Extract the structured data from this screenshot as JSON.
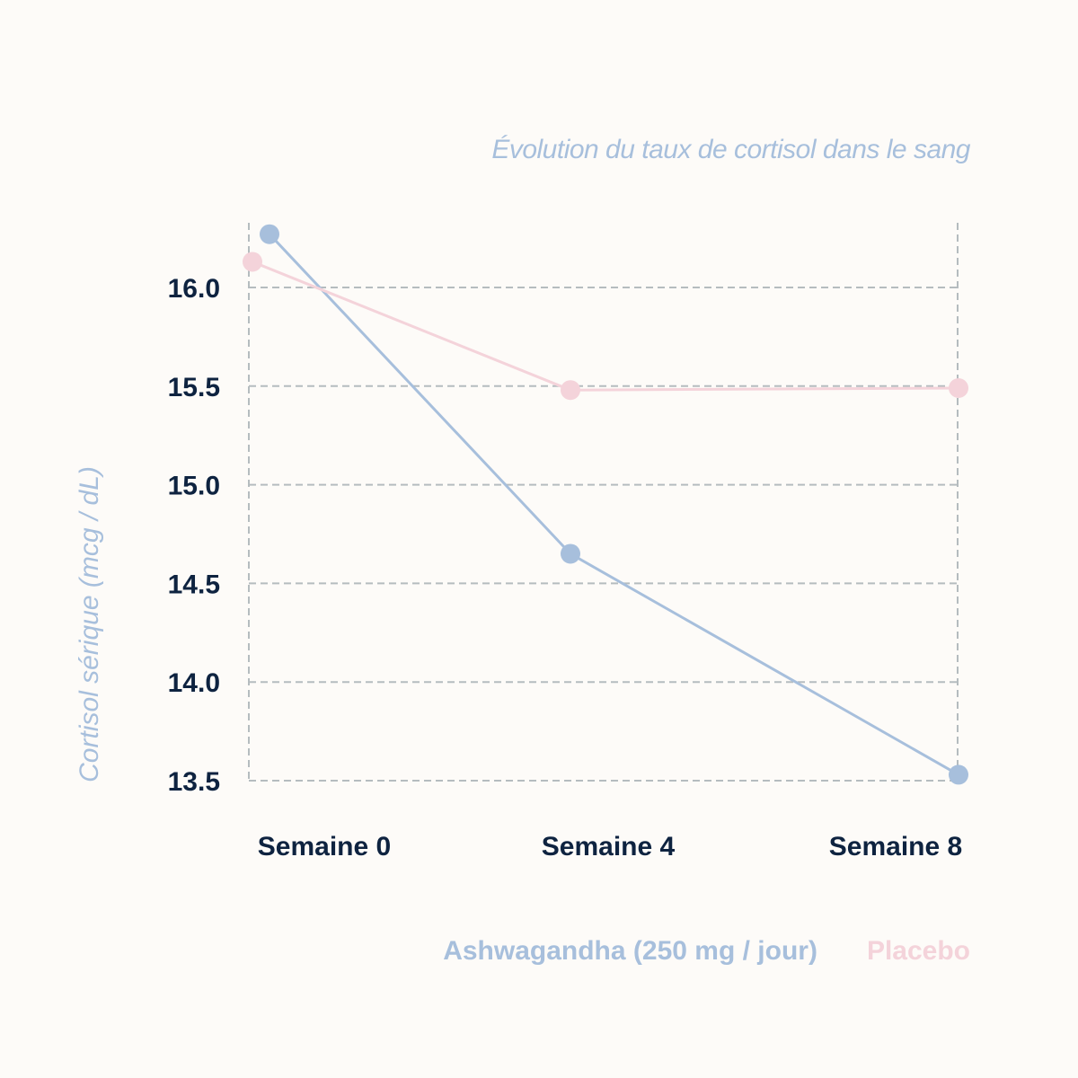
{
  "chart_data": {
    "type": "line",
    "title": "Évolution du taux de cortisol dans le sang",
    "xlabel": "",
    "ylabel": "Cortisol sérique (mcg / dL)",
    "categories": [
      "Semaine 0",
      "Semaine 4",
      "Semaine 8"
    ],
    "yticks": [
      "13.5",
      "14.0",
      "14.5",
      "15.0",
      "15.5",
      "16.0"
    ],
    "ylim": [
      13.5,
      16.3
    ],
    "grid": true,
    "legend_position": "bottom-right",
    "series": [
      {
        "name": "Ashwagandha (250 mg / jour)",
        "color": "#a7bfdc",
        "values": [
          16.27,
          14.65,
          13.53
        ]
      },
      {
        "name": "Placebo",
        "color": "#f4d3da",
        "values": [
          16.13,
          15.48,
          15.49
        ]
      }
    ]
  }
}
